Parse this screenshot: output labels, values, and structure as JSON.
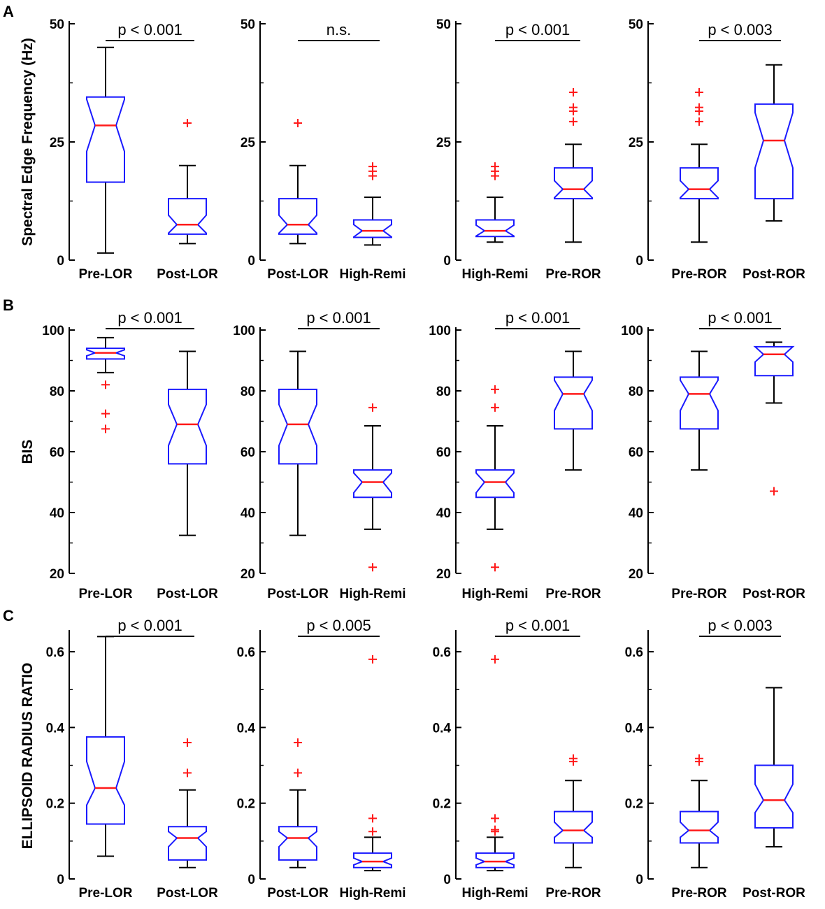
{
  "figure": {
    "colors": {
      "box": "#1a1aff",
      "median": "#ff1a1a",
      "outlier": "#ff1a1a",
      "axis": "#000000"
    }
  },
  "rows": [
    {
      "label": "A",
      "ylabel": "Spectral Edge Frequency (Hz)"
    },
    {
      "label": "B",
      "ylabel": "BIS"
    },
    {
      "label": "C",
      "ylabel": "ELLIPSOID RADIUS RATIO"
    }
  ],
  "chart_data": [
    {
      "type": "box",
      "panel": "A1",
      "ylim": [
        0,
        50
      ],
      "yticks": [
        "0",
        "25",
        "50"
      ],
      "ytick_values": [
        0,
        25,
        50
      ],
      "categories": [
        "Pre-LOR",
        "Post-LOR"
      ],
      "significance": "p < 0.001",
      "boxes": [
        {
          "whisker_low": 1.5,
          "q1": 16.5,
          "notch_low": 23,
          "median": 28.5,
          "notch_high": 34,
          "q3": 34.5,
          "whisker_high": 45,
          "outliers": []
        },
        {
          "whisker_low": 3.5,
          "q1": 5.5,
          "notch_low": 5.7,
          "median": 7.5,
          "notch_high": 9.5,
          "q3": 13,
          "whisker_high": 20,
          "outliers": [
            29
          ]
        }
      ]
    },
    {
      "type": "box",
      "panel": "A2",
      "ylim": [
        0,
        50
      ],
      "yticks": [
        "0",
        "25",
        "50"
      ],
      "ytick_values": [
        0,
        25,
        50
      ],
      "categories": [
        "Post-LOR",
        "High-Remi"
      ],
      "significance": "n.s.",
      "boxes": [
        {
          "whisker_low": 3.5,
          "q1": 5.5,
          "notch_low": 5.7,
          "median": 7.5,
          "notch_high": 9.5,
          "q3": 13,
          "whisker_high": 20,
          "outliers": [
            29
          ]
        },
        {
          "whisker_low": 3.2,
          "q1": 4.8,
          "notch_low": 4.9,
          "median": 6.2,
          "notch_high": 7.5,
          "q3": 8.5,
          "whisker_high": 13.3,
          "outliers": [
            17.8,
            18.8,
            19.8
          ]
        }
      ]
    },
    {
      "type": "box",
      "panel": "A3",
      "ylim": [
        0,
        50
      ],
      "yticks": [
        "0",
        "25",
        "50"
      ],
      "ytick_values": [
        0,
        25,
        50
      ],
      "categories": [
        "High-Remi",
        "Pre-ROR"
      ],
      "significance": "p < 0.001",
      "boxes": [
        {
          "whisker_low": 3.8,
          "q1": 5,
          "notch_low": 5.1,
          "median": 6.2,
          "notch_high": 7.4,
          "q3": 8.5,
          "whisker_high": 13.3,
          "outliers": [
            17.8,
            18.8,
            19.8
          ]
        },
        {
          "whisker_low": 3.8,
          "q1": 13,
          "notch_low": 13.2,
          "median": 15,
          "notch_high": 16.8,
          "q3": 19.5,
          "whisker_high": 24.5,
          "outliers": [
            29.3,
            31.5,
            32.3,
            35.5
          ]
        }
      ]
    },
    {
      "type": "box",
      "panel": "A4",
      "ylim": [
        0,
        50
      ],
      "yticks": [
        "0",
        "25",
        "50"
      ],
      "ytick_values": [
        0,
        25,
        50
      ],
      "categories": [
        "Pre-ROR",
        "Post-ROR"
      ],
      "significance": "p < 0.003",
      "boxes": [
        {
          "whisker_low": 3.8,
          "q1": 13,
          "notch_low": 13.2,
          "median": 15,
          "notch_high": 16.8,
          "q3": 19.5,
          "whisker_high": 24.5,
          "outliers": [
            29.3,
            31.5,
            32.3,
            35.5
          ]
        },
        {
          "whisker_low": 8.3,
          "q1": 13,
          "notch_low": 19.5,
          "median": 25.3,
          "notch_high": 31.2,
          "q3": 33,
          "whisker_high": 41.3,
          "outliers": []
        }
      ]
    },
    {
      "type": "box",
      "panel": "B1",
      "ylim": [
        20,
        100
      ],
      "yticks": [
        "20",
        "40",
        "60",
        "80",
        "100"
      ],
      "ytick_values": [
        20,
        40,
        60,
        80,
        100
      ],
      "categories": [
        "Pre-LOR",
        "Post-LOR"
      ],
      "significance": "p < 0.001",
      "boxes": [
        {
          "whisker_low": 86,
          "q1": 90.5,
          "notch_low": 91.5,
          "median": 92.5,
          "notch_high": 93.5,
          "q3": 94,
          "whisker_high": 97.5,
          "outliers": [
            67.5,
            72.5,
            82
          ]
        },
        {
          "whisker_low": 32.5,
          "q1": 56,
          "notch_low": 62,
          "median": 69,
          "notch_high": 75.5,
          "q3": 80.5,
          "whisker_high": 93,
          "outliers": []
        }
      ]
    },
    {
      "type": "box",
      "panel": "B2",
      "ylim": [
        20,
        100
      ],
      "yticks": [
        "20",
        "40",
        "60",
        "80",
        "100"
      ],
      "ytick_values": [
        20,
        40,
        60,
        80,
        100
      ],
      "categories": [
        "Post-LOR",
        "High-Remi"
      ],
      "significance": "p < 0.001",
      "boxes": [
        {
          "whisker_low": 32.5,
          "q1": 56,
          "notch_low": 62,
          "median": 69,
          "notch_high": 75.5,
          "q3": 80.5,
          "whisker_high": 93,
          "outliers": []
        },
        {
          "whisker_low": 34.5,
          "q1": 45,
          "notch_low": 46.5,
          "median": 50,
          "notch_high": 53,
          "q3": 54,
          "whisker_high": 68.5,
          "outliers": [
            22,
            74.5
          ]
        }
      ]
    },
    {
      "type": "box",
      "panel": "B3",
      "ylim": [
        20,
        100
      ],
      "yticks": [
        "20",
        "40",
        "60",
        "80",
        "100"
      ],
      "ytick_values": [
        20,
        40,
        60,
        80,
        100
      ],
      "categories": [
        "High-Remi",
        "Pre-ROR"
      ],
      "significance": "p < 0.001",
      "boxes": [
        {
          "whisker_low": 34.5,
          "q1": 45,
          "notch_low": 46.5,
          "median": 50,
          "notch_high": 53,
          "q3": 54,
          "whisker_high": 68.5,
          "outliers": [
            22,
            74.5,
            80.5
          ]
        },
        {
          "whisker_low": 54,
          "q1": 67.5,
          "notch_low": 73.5,
          "median": 79,
          "notch_high": 83.5,
          "q3": 84.5,
          "whisker_high": 93,
          "outliers": []
        }
      ]
    },
    {
      "type": "box",
      "panel": "B4",
      "ylim": [
        20,
        100
      ],
      "yticks": [
        "20",
        "40",
        "60",
        "80",
        "100"
      ],
      "ytick_values": [
        20,
        40,
        60,
        80,
        100
      ],
      "categories": [
        "Pre-ROR",
        "Post-ROR"
      ],
      "significance": "p < 0.001",
      "boxes": [
        {
          "whisker_low": 54,
          "q1": 67.5,
          "notch_low": 73.5,
          "median": 79,
          "notch_high": 83.5,
          "q3": 84.5,
          "whisker_high": 93,
          "outliers": []
        },
        {
          "whisker_low": 76,
          "q1": 85,
          "notch_low": 89.5,
          "median": 92,
          "notch_high": 94.5,
          "q3": 94.5,
          "whisker_high": 96,
          "outliers": [
            47
          ]
        }
      ]
    },
    {
      "type": "box",
      "panel": "C1",
      "ylim": [
        0,
        0.65
      ],
      "yticks": [
        "0",
        "0.2",
        "0.4",
        "0.6"
      ],
      "ytick_values": [
        0,
        0.2,
        0.4,
        0.6
      ],
      "categories": [
        "Pre-LOR",
        "Post-LOR"
      ],
      "significance": "p < 0.001",
      "boxes": [
        {
          "whisker_low": 0.06,
          "q1": 0.145,
          "notch_low": 0.195,
          "median": 0.24,
          "notch_high": 0.31,
          "q3": 0.375,
          "whisker_high": 0.64,
          "outliers": []
        },
        {
          "whisker_low": 0.03,
          "q1": 0.05,
          "notch_low": 0.085,
          "median": 0.108,
          "notch_high": 0.125,
          "q3": 0.138,
          "whisker_high": 0.235,
          "outliers": [
            0.28,
            0.36
          ]
        }
      ]
    },
    {
      "type": "box",
      "panel": "C2",
      "ylim": [
        0,
        0.65
      ],
      "yticks": [
        "0",
        "0.2",
        "0.4",
        "0.6"
      ],
      "ytick_values": [
        0,
        0.2,
        0.4,
        0.6
      ],
      "categories": [
        "Post-LOR",
        "High-Remi"
      ],
      "significance": "p < 0.005",
      "boxes": [
        {
          "whisker_low": 0.03,
          "q1": 0.05,
          "notch_low": 0.085,
          "median": 0.108,
          "notch_high": 0.125,
          "q3": 0.138,
          "whisker_high": 0.235,
          "outliers": [
            0.28,
            0.36
          ]
        },
        {
          "whisker_low": 0.022,
          "q1": 0.03,
          "notch_low": 0.037,
          "median": 0.046,
          "notch_high": 0.055,
          "q3": 0.068,
          "whisker_high": 0.11,
          "outliers": [
            0.125,
            0.16,
            0.58
          ]
        }
      ]
    },
    {
      "type": "box",
      "panel": "C3",
      "ylim": [
        0,
        0.65
      ],
      "yticks": [
        "0",
        "0.2",
        "0.4",
        "0.6"
      ],
      "ytick_values": [
        0,
        0.2,
        0.4,
        0.6
      ],
      "categories": [
        "High-Remi",
        "Pre-ROR"
      ],
      "significance": "p < 0.001",
      "boxes": [
        {
          "whisker_low": 0.022,
          "q1": 0.03,
          "notch_low": 0.037,
          "median": 0.046,
          "notch_high": 0.055,
          "q3": 0.068,
          "whisker_high": 0.11,
          "outliers": [
            0.125,
            0.13,
            0.16,
            0.58
          ]
        },
        {
          "whisker_low": 0.03,
          "q1": 0.095,
          "notch_low": 0.11,
          "median": 0.128,
          "notch_high": 0.15,
          "q3": 0.178,
          "whisker_high": 0.26,
          "outliers": [
            0.31,
            0.318
          ]
        }
      ]
    },
    {
      "type": "box",
      "panel": "C4",
      "ylim": [
        0,
        0.65
      ],
      "yticks": [
        "0",
        "0.2",
        "0.4",
        "0.6"
      ],
      "ytick_values": [
        0,
        0.2,
        0.4,
        0.6
      ],
      "categories": [
        "Pre-ROR",
        "Post-ROR"
      ],
      "significance": "p < 0.003",
      "boxes": [
        {
          "whisker_low": 0.03,
          "q1": 0.095,
          "notch_low": 0.11,
          "median": 0.128,
          "notch_high": 0.15,
          "q3": 0.178,
          "whisker_high": 0.26,
          "outliers": [
            0.31,
            0.318
          ]
        },
        {
          "whisker_low": 0.085,
          "q1": 0.135,
          "notch_low": 0.175,
          "median": 0.208,
          "notch_high": 0.25,
          "q3": 0.3,
          "whisker_high": 0.505,
          "outliers": []
        }
      ]
    }
  ]
}
